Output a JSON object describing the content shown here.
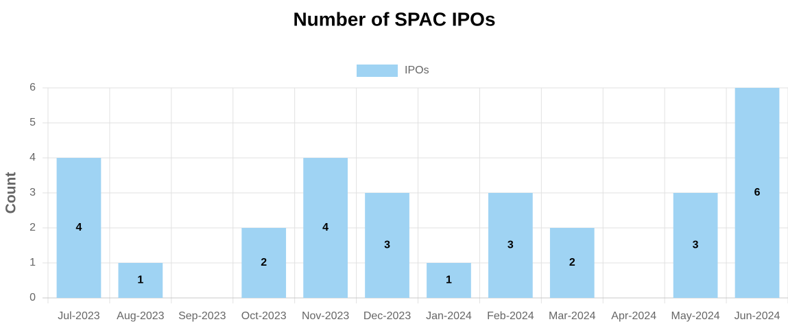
{
  "chart_data": {
    "type": "bar",
    "title": "Number of SPAC IPOs",
    "y_label": "Count",
    "categories": [
      "Jul-2023",
      "Aug-2023",
      "Sep-2023",
      "Oct-2023",
      "Nov-2023",
      "Dec-2023",
      "Jan-2024",
      "Feb-2024",
      "Mar-2024",
      "Apr-2024",
      "May-2024",
      "Jun-2024"
    ],
    "series": [
      {
        "name": "IPOs",
        "color": "#9fd3f3",
        "values": [
          4,
          1,
          0,
          2,
          4,
          3,
          1,
          3,
          2,
          0,
          3,
          6
        ]
      }
    ],
    "ylim": [
      0,
      6
    ],
    "yticks": [
      0,
      1,
      2,
      3,
      4,
      5,
      6
    ],
    "grid": true,
    "legend": "top"
  }
}
